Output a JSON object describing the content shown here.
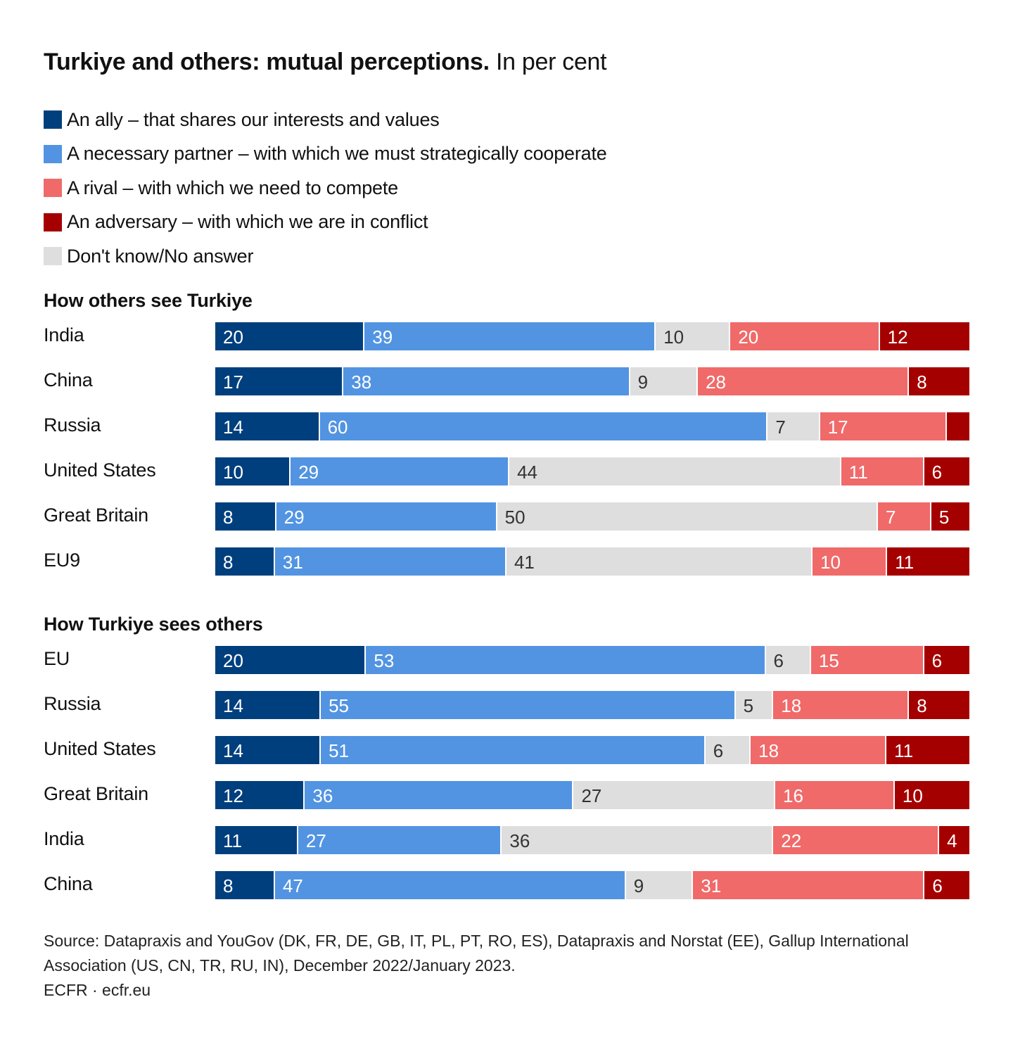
{
  "title": {
    "bold": "Turkiye and others: mutual perceptions.",
    "regular": "In per cent"
  },
  "colors": {
    "ally": "#003f7d",
    "partner": "#5294e2",
    "rival": "#f06a6a",
    "adversary": "#a50000",
    "dk": "#dedede"
  },
  "legend": [
    {
      "key": "ally",
      "label": "An ally – that shares our interests and values"
    },
    {
      "key": "partner",
      "label": "A necessary partner – with which we must strategically cooperate"
    },
    {
      "key": "rival",
      "label": "A rival – with which we need to compete"
    },
    {
      "key": "adversary",
      "label": "An adversary – with which we are in conflict"
    },
    {
      "key": "dk",
      "label": "Don't know/No answer"
    }
  ],
  "source": {
    "line1": "Source: Datapraxis and YouGov (DK, FR, DE, GB, IT, PL, PT, RO, ES), Datapraxis and Norstat (EE), Gallup International Association (US, CN, TR, RU, IN), December 2022/January 2023.",
    "line2": "ECFR · ecfr.eu"
  },
  "chart_data": [
    {
      "type": "bar",
      "stacked": true,
      "orientation": "horizontal",
      "title": "How others see Turkiye",
      "segment_order": [
        "ally",
        "partner",
        "dk",
        "rival",
        "adversary"
      ],
      "categories": [
        "India",
        "China",
        "Russia",
        "United States",
        "Great Britain",
        "EU9"
      ],
      "series": [
        {
          "key": "ally",
          "values": [
            20,
            17,
            14,
            10,
            8,
            8
          ]
        },
        {
          "key": "partner",
          "values": [
            39,
            38,
            60,
            29,
            29,
            31
          ]
        },
        {
          "key": "dk",
          "values": [
            10,
            9,
            7,
            44,
            50,
            41
          ]
        },
        {
          "key": "rival",
          "values": [
            20,
            28,
            17,
            11,
            7,
            10
          ]
        },
        {
          "key": "adversary",
          "values": [
            12,
            8,
            3,
            6,
            5,
            11
          ]
        }
      ],
      "hidden_labels": [
        [],
        [],
        [
          "adversary"
        ],
        [],
        [],
        []
      ]
    },
    {
      "type": "bar",
      "stacked": true,
      "orientation": "horizontal",
      "title": "How Turkiye sees others",
      "segment_order": [
        "ally",
        "partner",
        "dk",
        "rival",
        "adversary"
      ],
      "categories": [
        "EU",
        "Russia",
        "United States",
        "Great Britain",
        "India",
        "China"
      ],
      "series": [
        {
          "key": "ally",
          "values": [
            20,
            14,
            14,
            12,
            11,
            8
          ]
        },
        {
          "key": "partner",
          "values": [
            53,
            55,
            51,
            36,
            27,
            47
          ]
        },
        {
          "key": "dk",
          "values": [
            6,
            5,
            6,
            27,
            36,
            9
          ]
        },
        {
          "key": "rival",
          "values": [
            15,
            18,
            18,
            16,
            22,
            31
          ]
        },
        {
          "key": "adversary",
          "values": [
            6,
            8,
            11,
            10,
            4,
            6
          ]
        }
      ],
      "hidden_labels": [
        [],
        [],
        [],
        [],
        [],
        []
      ]
    }
  ]
}
